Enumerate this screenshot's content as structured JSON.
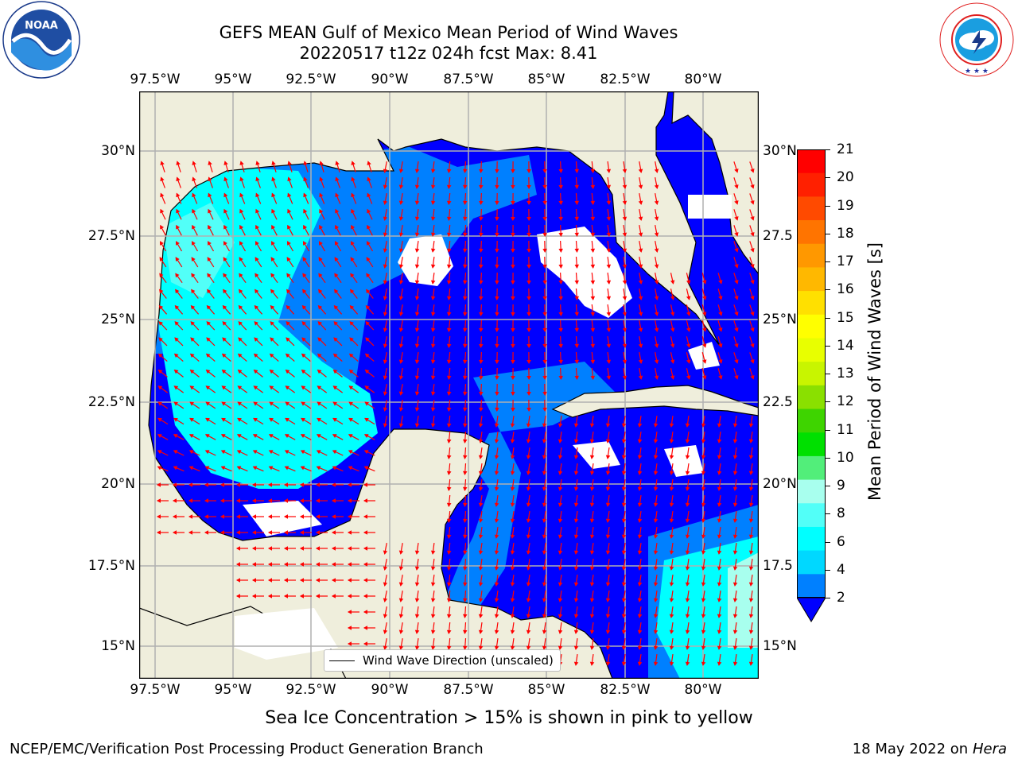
{
  "logos": {
    "noaa": {
      "text": "NOAA",
      "ring_text": "NATIONAL OCEANIC AND ATMOSPHERIC ADMINISTRATION · U.S. DEPARTMENT OF COMMERCE"
    },
    "nws": {
      "ring_text": "NATIONAL WEATHER SERVICE"
    }
  },
  "title": {
    "line1": "GEFS MEAN Gulf of Mexico Mean Period of Wind Waves",
    "line2": "20220517 t12z 024h fcst   Max: 8.41"
  },
  "axes": {
    "x_ticks": [
      "97.5°W",
      "95°W",
      "92.5°W",
      "90°W",
      "87.5°W",
      "85°W",
      "82.5°W",
      "80°W"
    ],
    "y_ticks_left": [
      "30°N",
      "27.5°N",
      "25°N",
      "22.5°N",
      "20°N",
      "17.5°N",
      "15°N"
    ],
    "y_ticks_right": [
      "30°N",
      "27.5",
      "25°N",
      "22.5",
      "20°N",
      "17.5",
      "15°N"
    ]
  },
  "legend": {
    "label": "Wind Wave Direction (unscaled)"
  },
  "colorbar": {
    "label": "Mean Period of Wind Waves [s]",
    "ticks": [
      "21",
      "20",
      "19",
      "18",
      "17",
      "16",
      "15",
      "14",
      "13",
      "12",
      "11",
      "10",
      "9",
      "8",
      "6",
      "4",
      "2"
    ],
    "colors": [
      "#ff0000",
      "#ff2000",
      "#ff4a00",
      "#ff7400",
      "#ff9800",
      "#ffb800",
      "#ffe000",
      "#ffff00",
      "#e8ff00",
      "#c8f500",
      "#8ae000",
      "#3ed400",
      "#00e000",
      "#52ee7a",
      "#a8ffee",
      "#52fff8",
      "#00ffff",
      "#00d8ff",
      "#0080ff"
    ],
    "extend_color": "#0000ff"
  },
  "colors": {
    "land": "#efeedc",
    "level_2_4": "#0080ff",
    "below_2": "#0000ff",
    "level_4_6": "#00ffff",
    "level_6_8": "#52fff8",
    "arrows": "#ff0000",
    "grid": "#b0b0b0"
  },
  "footer": {
    "sea_ice_note": "Sea Ice Concentration > 15% is shown in pink to yellow",
    "branch": "NCEP/EMC/Verification Post Processing Product Generation Branch",
    "date": "18 May 2022 on",
    "host": "Hera"
  }
}
